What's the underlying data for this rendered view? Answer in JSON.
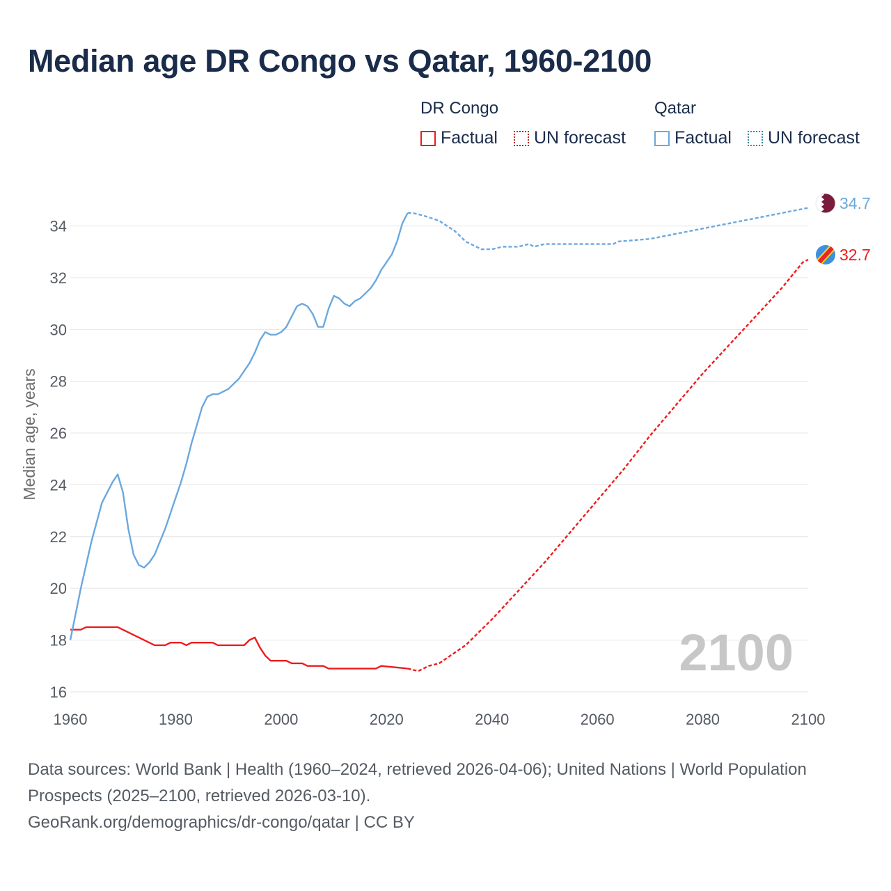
{
  "title": "Median age DR Congo vs Qatar, 1960-2100",
  "legend": {
    "groups": [
      {
        "name": "DR Congo",
        "factual_label": "Factual",
        "forecast_label": "UN forecast",
        "color": "#ee1c1c"
      },
      {
        "name": "Qatar",
        "factual_label": "Factual",
        "forecast_label": "UN forecast",
        "color": "#6aa8e0"
      }
    ]
  },
  "watermark_year": "2100",
  "footer": {
    "sources": "Data sources: World Bank | Health (1960–2024, retrieved 2026-04-06); United Nations | World Population Prospects (2025–2100, retrieved 2026-03-10).",
    "credit": "GeoRank.org/demographics/dr-congo/qatar | CC BY"
  },
  "chart_data": {
    "type": "line",
    "title": "Median age DR Congo vs Qatar, 1960-2100",
    "xlabel": "",
    "ylabel": "Median age, years",
    "xlim": [
      1960,
      2100
    ],
    "ylim": [
      15.7,
      35.2
    ],
    "xticks": [
      1960,
      1980,
      2000,
      2020,
      2040,
      2060,
      2080,
      2100
    ],
    "yticks": [
      16,
      18,
      20,
      22,
      24,
      26,
      28,
      30,
      32,
      34
    ],
    "grid": true,
    "series": [
      {
        "name": "DR Congo",
        "color": "#ee1c1c",
        "end_label": "32.7",
        "factual": {
          "x": [
            1960,
            1962,
            1963,
            1969,
            1976,
            1978,
            1979,
            1981,
            1982,
            1983,
            1987,
            1988,
            1993,
            1994,
            1995,
            1996,
            1997,
            1998,
            2001,
            2002,
            2004,
            2005,
            2008,
            2009,
            2018,
            2019,
            2024
          ],
          "y": [
            18.4,
            18.4,
            18.5,
            18.5,
            17.8,
            17.8,
            17.9,
            17.9,
            17.8,
            17.9,
            17.9,
            17.8,
            17.8,
            18.0,
            18.1,
            17.7,
            17.4,
            17.2,
            17.2,
            17.1,
            17.1,
            17.0,
            17.0,
            16.9,
            16.9,
            17.0,
            16.9
          ]
        },
        "forecast": {
          "x": [
            2024,
            2026,
            2028,
            2030,
            2035,
            2040,
            2045,
            2050,
            2055,
            2060,
            2065,
            2070,
            2075,
            2080,
            2085,
            2090,
            2095,
            2099,
            2100
          ],
          "y": [
            16.9,
            16.8,
            17.0,
            17.1,
            17.8,
            18.8,
            19.9,
            21.0,
            22.2,
            23.4,
            24.6,
            25.9,
            27.1,
            28.3,
            29.4,
            30.5,
            31.6,
            32.6,
            32.7
          ]
        }
      },
      {
        "name": "Qatar",
        "color": "#6aa8e0",
        "end_label": "34.7",
        "factual": {
          "x": [
            1960,
            1961,
            1962,
            1964,
            1966,
            1968,
            1969,
            1970,
            1971,
            1972,
            1973,
            1974,
            1975,
            1976,
            1977,
            1978,
            1979,
            1980,
            1981,
            1982,
            1983,
            1984,
            1985,
            1986,
            1987,
            1988,
            1989,
            1990,
            1991,
            1992,
            1993,
            1994,
            1995,
            1996,
            1997,
            1998,
            1999,
            2000,
            2001,
            2002,
            2003,
            2004,
            2005,
            2006,
            2007,
            2008,
            2009,
            2010,
            2011,
            2012,
            2013,
            2014,
            2015,
            2016,
            2017,
            2018,
            2019,
            2020,
            2021,
            2022,
            2023,
            2024
          ],
          "y": [
            18.0,
            19.0,
            20.0,
            21.8,
            23.3,
            24.1,
            24.4,
            23.7,
            22.3,
            21.3,
            20.9,
            20.8,
            21.0,
            21.3,
            21.8,
            22.3,
            22.9,
            23.5,
            24.1,
            24.8,
            25.6,
            26.3,
            27.0,
            27.4,
            27.5,
            27.5,
            27.6,
            27.7,
            27.9,
            28.1,
            28.4,
            28.7,
            29.1,
            29.6,
            29.9,
            29.8,
            29.8,
            29.9,
            30.1,
            30.5,
            30.9,
            31.0,
            30.9,
            30.6,
            30.1,
            30.1,
            30.8,
            31.3,
            31.2,
            31.0,
            30.9,
            31.1,
            31.2,
            31.4,
            31.6,
            31.9,
            32.3,
            32.6,
            32.9,
            33.4,
            34.1,
            34.5
          ]
        },
        "forecast": {
          "x": [
            2024,
            2025,
            2027,
            2030,
            2033,
            2035,
            2038,
            2040,
            2042,
            2045,
            2047,
            2048,
            2050,
            2055,
            2060,
            2063,
            2064,
            2070,
            2075,
            2080,
            2085,
            2090,
            2095,
            2100
          ],
          "y": [
            34.5,
            34.5,
            34.4,
            34.2,
            33.8,
            33.4,
            33.1,
            33.1,
            33.2,
            33.2,
            33.3,
            33.2,
            33.3,
            33.3,
            33.3,
            33.3,
            33.4,
            33.5,
            33.7,
            33.9,
            34.1,
            34.3,
            34.5,
            34.7
          ]
        }
      }
    ]
  }
}
